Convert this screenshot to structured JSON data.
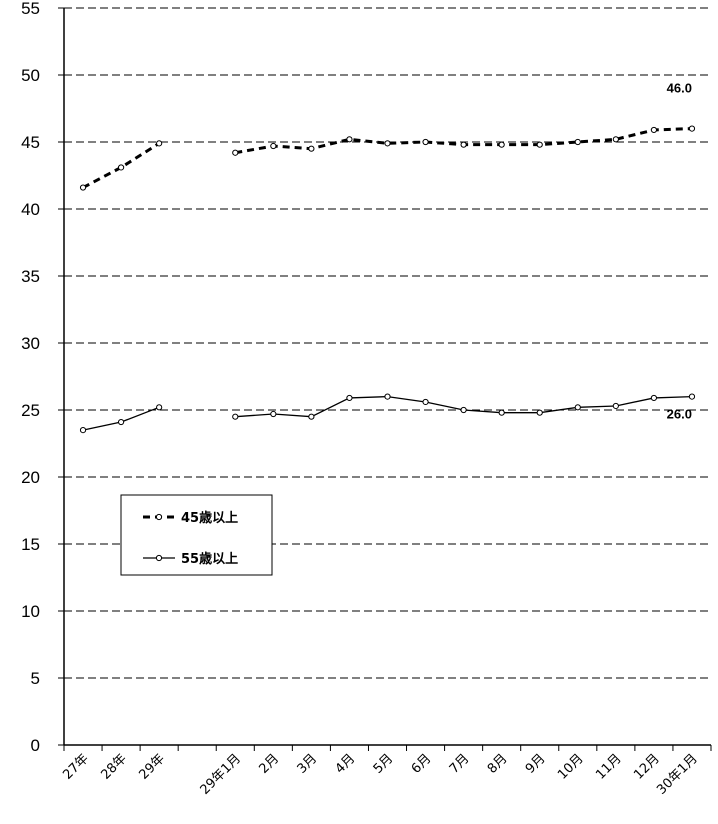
{
  "chart_data": {
    "type": "line",
    "categories": [
      "27年",
      "28年",
      "29年",
      "",
      "29年1月",
      "2月",
      "3月",
      "4月",
      "5月",
      "6月",
      "7月",
      "8月",
      "9月",
      "10月",
      "11月",
      "12月",
      "30年1月"
    ],
    "series": [
      {
        "name": "45歳以上",
        "style": "dashed",
        "values": [
          41.6,
          43.1,
          44.9,
          null,
          44.2,
          44.7,
          44.5,
          45.2,
          44.9,
          45.0,
          44.8,
          44.8,
          44.8,
          45.0,
          45.2,
          45.9,
          46.0
        ]
      },
      {
        "name": "55歳以上",
        "style": "solid",
        "values": [
          23.5,
          24.1,
          25.2,
          null,
          24.5,
          24.7,
          24.5,
          25.9,
          26.0,
          25.6,
          25.0,
          24.8,
          24.8,
          25.2,
          25.3,
          25.9,
          26.0
        ]
      }
    ],
    "data_labels": [
      {
        "series": 0,
        "index": 16,
        "text": "46.0"
      },
      {
        "series": 1,
        "index": 16,
        "text": "26.0"
      }
    ],
    "ylim": [
      0,
      55
    ],
    "yticks": [
      0,
      5,
      10,
      15,
      20,
      25,
      30,
      35,
      40,
      45,
      50,
      55
    ],
    "grid": "horizontal-dashed",
    "legend_position": "center-left",
    "title": "",
    "xlabel": "",
    "ylabel": ""
  }
}
